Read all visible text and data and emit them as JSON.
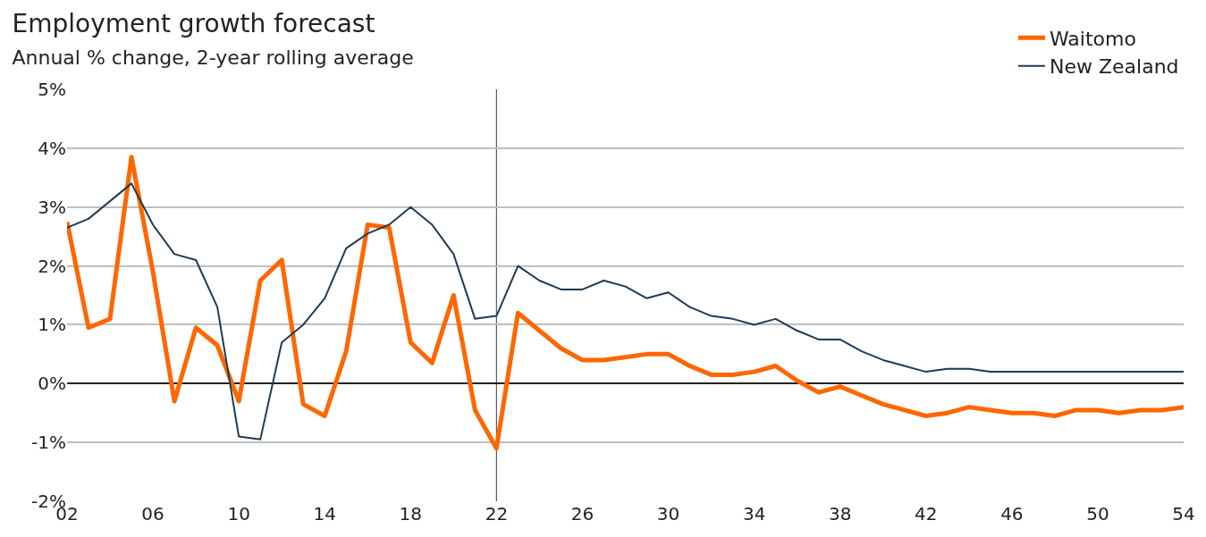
{
  "chart_data": {
    "type": "line",
    "title": "Employment growth forecast",
    "subtitle": "Annual % change, 2-year rolling average",
    "x": [
      2002,
      2003,
      2004,
      2005,
      2006,
      2007,
      2008,
      2009,
      2010,
      2011,
      2012,
      2013,
      2014,
      2015,
      2016,
      2017,
      2018,
      2019,
      2020,
      2021,
      2022,
      2023,
      2024,
      2025,
      2026,
      2027,
      2028,
      2029,
      2030,
      2031,
      2032,
      2033,
      2034,
      2035,
      2036,
      2037,
      2038,
      2039,
      2040,
      2041,
      2042,
      2043,
      2044,
      2045,
      2046,
      2047,
      2048,
      2049,
      2050,
      2051,
      2052,
      2053,
      2054
    ],
    "series": [
      {
        "name": "Waitomo",
        "color": "#ff6600",
        "values": [
          2.75,
          0.95,
          1.1,
          3.85,
          1.9,
          -0.3,
          0.95,
          0.65,
          -0.3,
          1.75,
          2.1,
          -0.35,
          -0.55,
          0.55,
          2.7,
          2.65,
          0.7,
          0.35,
          1.5,
          -0.45,
          -1.1,
          1.2,
          0.9,
          0.6,
          0.4,
          0.4,
          0.45,
          0.5,
          0.5,
          0.3,
          0.15,
          0.15,
          0.2,
          0.3,
          0.05,
          -0.15,
          -0.05,
          -0.2,
          -0.35,
          -0.45,
          -0.55,
          -0.5,
          -0.4,
          -0.45,
          -0.5,
          -0.5,
          -0.55,
          -0.45,
          -0.45,
          -0.5,
          -0.45,
          -0.45,
          -0.4
        ]
      },
      {
        "name": "New Zealand",
        "color": "#1f3a56",
        "values": [
          2.65,
          2.8,
          3.1,
          3.4,
          2.7,
          2.2,
          2.1,
          1.3,
          -0.9,
          -0.95,
          0.7,
          1.0,
          1.45,
          2.3,
          2.55,
          2.7,
          3.0,
          2.7,
          2.2,
          1.1,
          1.15,
          2.0,
          1.75,
          1.6,
          1.6,
          1.75,
          1.65,
          1.45,
          1.55,
          1.3,
          1.15,
          1.1,
          1.0,
          1.1,
          0.9,
          0.75,
          0.75,
          0.55,
          0.4,
          0.3,
          0.2,
          0.25,
          0.25,
          0.2,
          0.2,
          0.2,
          0.2,
          0.2,
          0.2,
          0.2,
          0.2,
          0.2,
          0.2
        ]
      }
    ],
    "xlim": [
      2002,
      2054
    ],
    "xticks": [
      {
        "value": 2002,
        "label": "02"
      },
      {
        "value": 2006,
        "label": "06"
      },
      {
        "value": 2010,
        "label": "10"
      },
      {
        "value": 2014,
        "label": "14"
      },
      {
        "value": 2018,
        "label": "18"
      },
      {
        "value": 2022,
        "label": "22"
      },
      {
        "value": 2026,
        "label": "26"
      },
      {
        "value": 2030,
        "label": "30"
      },
      {
        "value": 2034,
        "label": "34"
      },
      {
        "value": 2038,
        "label": "38"
      },
      {
        "value": 2042,
        "label": "42"
      },
      {
        "value": 2046,
        "label": "46"
      },
      {
        "value": 2050,
        "label": "50"
      },
      {
        "value": 2054,
        "label": "54"
      }
    ],
    "ylim": [
      -2,
      5
    ],
    "yticks": [
      {
        "value": -2,
        "label": "-2%"
      },
      {
        "value": -1,
        "label": "-1%"
      },
      {
        "value": 0,
        "label": "0%"
      },
      {
        "value": 1,
        "label": "1%"
      },
      {
        "value": 2,
        "label": "2%"
      },
      {
        "value": 3,
        "label": "3%"
      },
      {
        "value": 4,
        "label": "4%"
      },
      {
        "value": 5,
        "label": "5%"
      }
    ],
    "ref_lines": [
      {
        "axis": "x",
        "value": 2022,
        "color": "#595959"
      }
    ],
    "grid": "y",
    "legend": "top right",
    "line_style": "solid",
    "marker": "none"
  }
}
